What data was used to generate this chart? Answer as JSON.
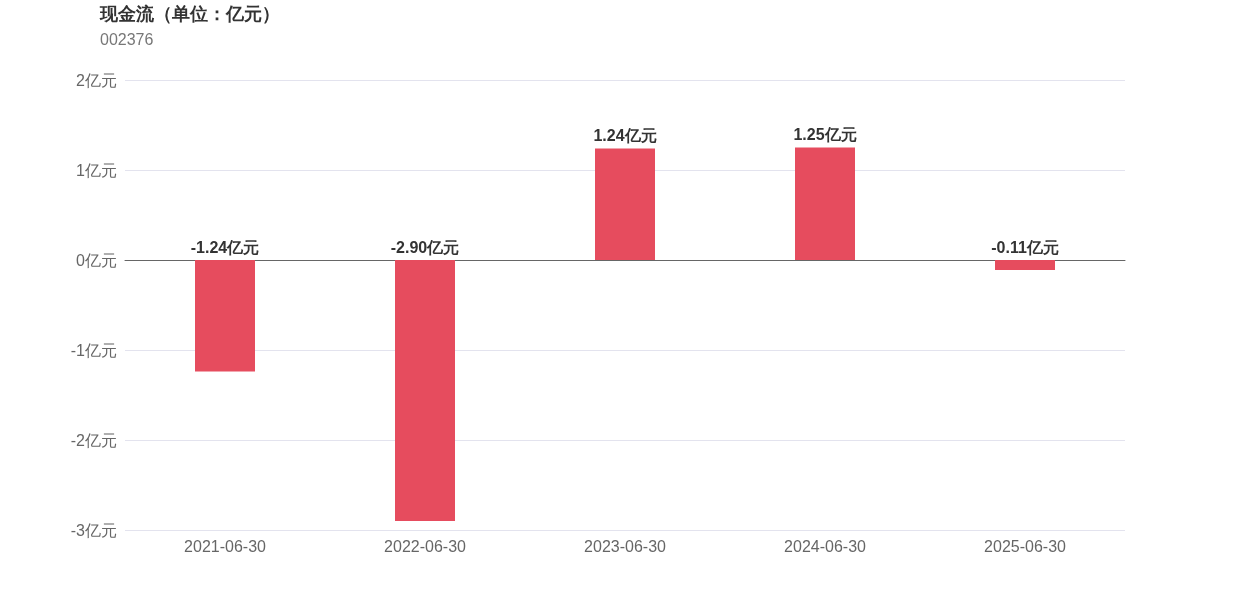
{
  "chart_data": {
    "type": "bar",
    "title": "现金流（单位：亿元）",
    "subtitle": "002376",
    "categories": [
      "2021-06-30",
      "2022-06-30",
      "2023-06-30",
      "2024-06-30",
      "2025-06-30"
    ],
    "values": [
      -1.24,
      -2.9,
      1.24,
      1.25,
      -0.11
    ],
    "value_labels": [
      "-1.24亿元",
      "-2.90亿元",
      "1.24亿元",
      "1.25亿元",
      "-0.11亿元"
    ],
    "color": "#e64c5e",
    "ylim": [
      -3,
      2
    ],
    "yticks": [
      {
        "value": -3,
        "label": "-3亿元"
      },
      {
        "value": -2,
        "label": "-2亿元"
      },
      {
        "value": -1,
        "label": "-1亿元"
      },
      {
        "value": 0,
        "label": "0亿元"
      },
      {
        "value": 1,
        "label": "1亿元"
      },
      {
        "value": 2,
        "label": "2亿元"
      }
    ],
    "grid": "y"
  }
}
